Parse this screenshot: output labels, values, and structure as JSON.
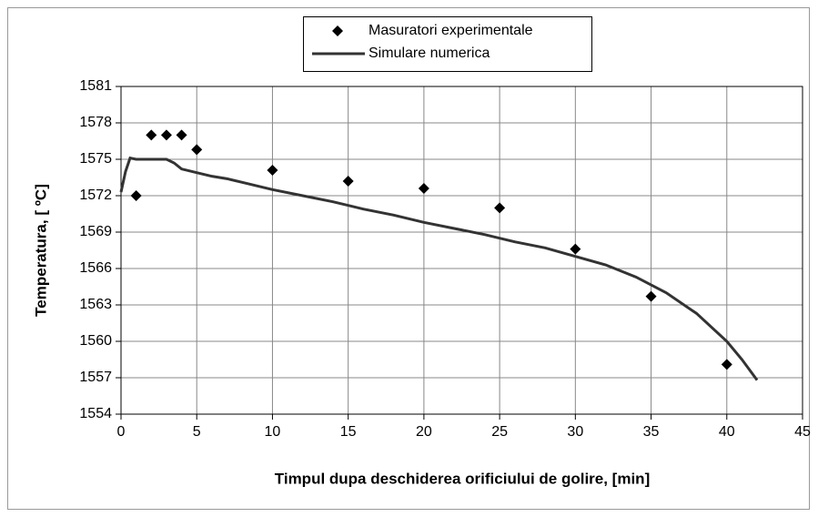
{
  "chart_data": {
    "type": "line",
    "xlabel": "Timpul dupa deschiderea orificiului de golire, [min]",
    "ylabel": "Temperatura, [ ºC]",
    "xlim": [
      0,
      45
    ],
    "xticks": [
      0,
      5,
      10,
      15,
      20,
      25,
      30,
      35,
      40,
      45
    ],
    "ylim": [
      1554,
      1581
    ],
    "yticks": [
      1554,
      1557,
      1560,
      1563,
      1566,
      1569,
      1572,
      1575,
      1578,
      1581
    ],
    "grid": true,
    "legend": "top",
    "series": [
      {
        "name": "Masuratori experimentale",
        "color": "#000000",
        "mode": "markers",
        "x": [
          1,
          2,
          3,
          4,
          5,
          10,
          15,
          20,
          25,
          30,
          35,
          40
        ],
        "values": [
          1572,
          1577,
          1577,
          1577,
          1575.8,
          1574.1,
          1573.2,
          1572.6,
          1571,
          1567.6,
          1563.7,
          1558.1
        ]
      },
      {
        "name": "Simulare numerica",
        "color": "#333333",
        "mode": "lines",
        "x": [
          0,
          0.3,
          0.6,
          1,
          2,
          3,
          3.5,
          4,
          5,
          6,
          7,
          8,
          10,
          12,
          14,
          16,
          18,
          20,
          22,
          24,
          26,
          28,
          30,
          32,
          34,
          36,
          38,
          40,
          41,
          42
        ],
        "values": [
          1572.3,
          1574,
          1575.1,
          1575,
          1575,
          1575,
          1574.7,
          1574.2,
          1573.9,
          1573.6,
          1573.4,
          1573.1,
          1572.5,
          1572,
          1571.5,
          1570.9,
          1570.4,
          1569.8,
          1569.3,
          1568.8,
          1568.2,
          1567.7,
          1567,
          1566.3,
          1565.3,
          1564,
          1562.3,
          1560,
          1558.5,
          1556.8
        ]
      }
    ]
  }
}
